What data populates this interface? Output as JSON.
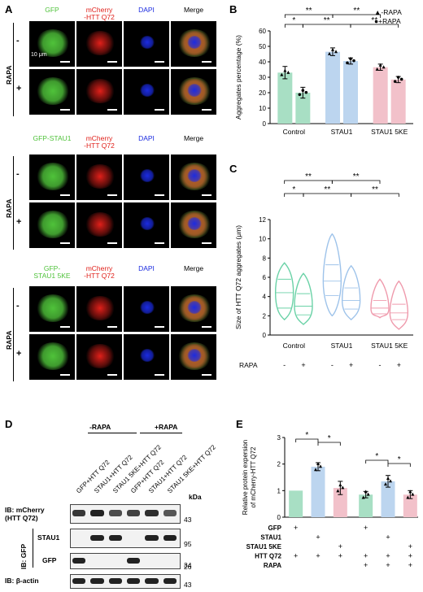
{
  "panels": {
    "A": {
      "label": "A",
      "rapa_label": "RAPA",
      "minus": "-",
      "plus": "+",
      "scale": "10 μm",
      "groups": [
        {
          "headers": [
            "GFP",
            "mCherry\n-HTT Q72",
            "DAPI",
            "Merge"
          ]
        },
        {
          "headers": [
            "GFP-STAU1",
            "mCherry\n-HTT Q72",
            "DAPI",
            "Merge"
          ]
        },
        {
          "headers": [
            "GFP-\nSTAU1 5KE",
            "mCherry\n-HTT Q72",
            "DAPI",
            "Merge"
          ]
        }
      ],
      "colors": {
        "gfp": "#4fc23a",
        "mcherry": "#e0201a",
        "dapi": "#1b2be0"
      }
    },
    "B": {
      "label": "B"
    },
    "C": {
      "label": "C"
    },
    "D": {
      "label": "D",
      "minus_rapa": "-RAPA",
      "plus_rapa": "+RAPA",
      "lanes": [
        "GFP+HTT Q72",
        "STAU1+HTT Q72",
        "STAU1 5KE+HTT Q72",
        "GFP+HTT Q72",
        "STAU1+HTT Q72",
        "STAU1 5KE+HTT Q72"
      ],
      "kda": "kDa",
      "rows": [
        {
          "label": "IB: mCherry\n(HTT Q72)",
          "marker": "43"
        },
        {
          "label": "STAU1",
          "marker": "95"
        },
        {
          "label": "GFP",
          "marker": "34"
        },
        {
          "label": "IB: β-actin",
          "marker": "43"
        }
      ],
      "ib_gfp": "IB: GFP",
      "gfp_marker2": "26"
    },
    "E": {
      "label": "E"
    }
  },
  "chart_data": [
    {
      "panel": "B",
      "type": "bar",
      "ylabel": "Aggregates percentage (%)",
      "categories": [
        "Control",
        "STAU1",
        "STAU1 5KE"
      ],
      "ylim": [
        0,
        60
      ],
      "yticks": [
        0,
        10,
        20,
        30,
        40,
        50,
        60
      ],
      "series": [
        {
          "name": "-RAPA",
          "values": [
            33,
            46.5,
            36.5
          ]
        },
        {
          "name": "+RAPA",
          "values": [
            20,
            40.5,
            28.5
          ]
        }
      ],
      "errors": [
        [
          4,
          2.5,
          2
        ],
        [
          3.5,
          2,
          2
        ]
      ],
      "colors": [
        "#a8dfc4",
        "#bcd5ef",
        "#f2c1ca"
      ],
      "legend": [
        "▲-RAPA",
        "●+RAPA"
      ],
      "significance": [
        {
          "from": 0,
          "to": 1,
          "label": "*"
        },
        {
          "from": 0,
          "to": 2,
          "label": "**"
        },
        {
          "from": 1,
          "to": 3,
          "label": "**"
        },
        {
          "from": 2,
          "to": 4,
          "label": "**"
        },
        {
          "from": 3,
          "to": 5,
          "label": "**"
        }
      ]
    },
    {
      "panel": "C",
      "type": "violin",
      "ylabel": "Size of HTT Q72  aggregates  (μm)",
      "xlabel": "RAPA",
      "categories": [
        "Control",
        "STAU1",
        "STAU1 5KE"
      ],
      "rapa": [
        "-",
        "+",
        "-",
        "+",
        "-",
        "+"
      ],
      "ylim": [
        0,
        12
      ],
      "yticks": [
        0,
        2,
        4,
        6,
        8,
        10,
        12
      ],
      "violins": [
        {
          "min": 1.6,
          "max": 7.5,
          "q1": 2.8,
          "med": 4.4,
          "q3": 5.8
        },
        {
          "min": 1.1,
          "max": 6.4,
          "q1": 2.1,
          "med": 3.0,
          "q3": 4.3
        },
        {
          "min": 2.0,
          "max": 10.5,
          "q1": 4.1,
          "med": 5.6,
          "q3": 7.3
        },
        {
          "min": 1.6,
          "max": 7.2,
          "q1": 2.7,
          "med": 3.6,
          "q3": 4.9
        },
        {
          "min": 1.8,
          "max": 5.8,
          "q1": 2.2,
          "med": 2.8,
          "q3": 3.6
        },
        {
          "min": 0.6,
          "max": 5.6,
          "q1": 1.6,
          "med": 2.3,
          "q3": 3.2
        }
      ],
      "colors": [
        "#6bd2a7",
        "#6bd2a7",
        "#9ec3ea",
        "#9ec3ea",
        "#ef9aac",
        "#ef9aac"
      ],
      "significance": [
        {
          "from": 0,
          "to": 1,
          "label": "*"
        },
        {
          "from": 0,
          "to": 2,
          "label": "**"
        },
        {
          "from": 1,
          "to": 3,
          "label": "**"
        },
        {
          "from": 2,
          "to": 4,
          "label": "**"
        },
        {
          "from": 3,
          "to": 5,
          "label": "**"
        }
      ]
    },
    {
      "panel": "E",
      "type": "bar",
      "ylabel": "Relative protein expersion\nof mCherry-HTT Q72",
      "ylim": [
        0,
        3
      ],
      "yticks": [
        0,
        1,
        2,
        3
      ],
      "values": [
        1.0,
        1.9,
        1.1,
        0.85,
        1.35,
        0.85
      ],
      "errors": [
        0,
        0.15,
        0.25,
        0.12,
        0.22,
        0.15
      ],
      "colors": [
        "#a8dfc4",
        "#bcd5ef",
        "#f2c1ca",
        "#a8dfc4",
        "#bcd5ef",
        "#f2c1ca"
      ],
      "row_labels": [
        "GFP",
        "STAU1",
        "STAU1 5KE",
        "HTT Q72",
        "RAPA"
      ],
      "row_marks": [
        [
          "+",
          "",
          "",
          "+",
          "",
          ""
        ],
        [
          "",
          "+",
          "",
          "",
          "+",
          ""
        ],
        [
          "",
          "",
          "+",
          "",
          "",
          "+"
        ],
        [
          "+",
          "+",
          "+",
          "+",
          "+",
          "+"
        ],
        [
          "",
          "",
          "",
          "+",
          "+",
          "+"
        ]
      ],
      "significance": [
        {
          "from": 0,
          "to": 1,
          "label": "*"
        },
        {
          "from": 1,
          "to": 2,
          "label": "*"
        },
        {
          "from": 3,
          "to": 4,
          "label": "*"
        },
        {
          "from": 4,
          "to": 5,
          "label": "*"
        }
      ]
    }
  ]
}
